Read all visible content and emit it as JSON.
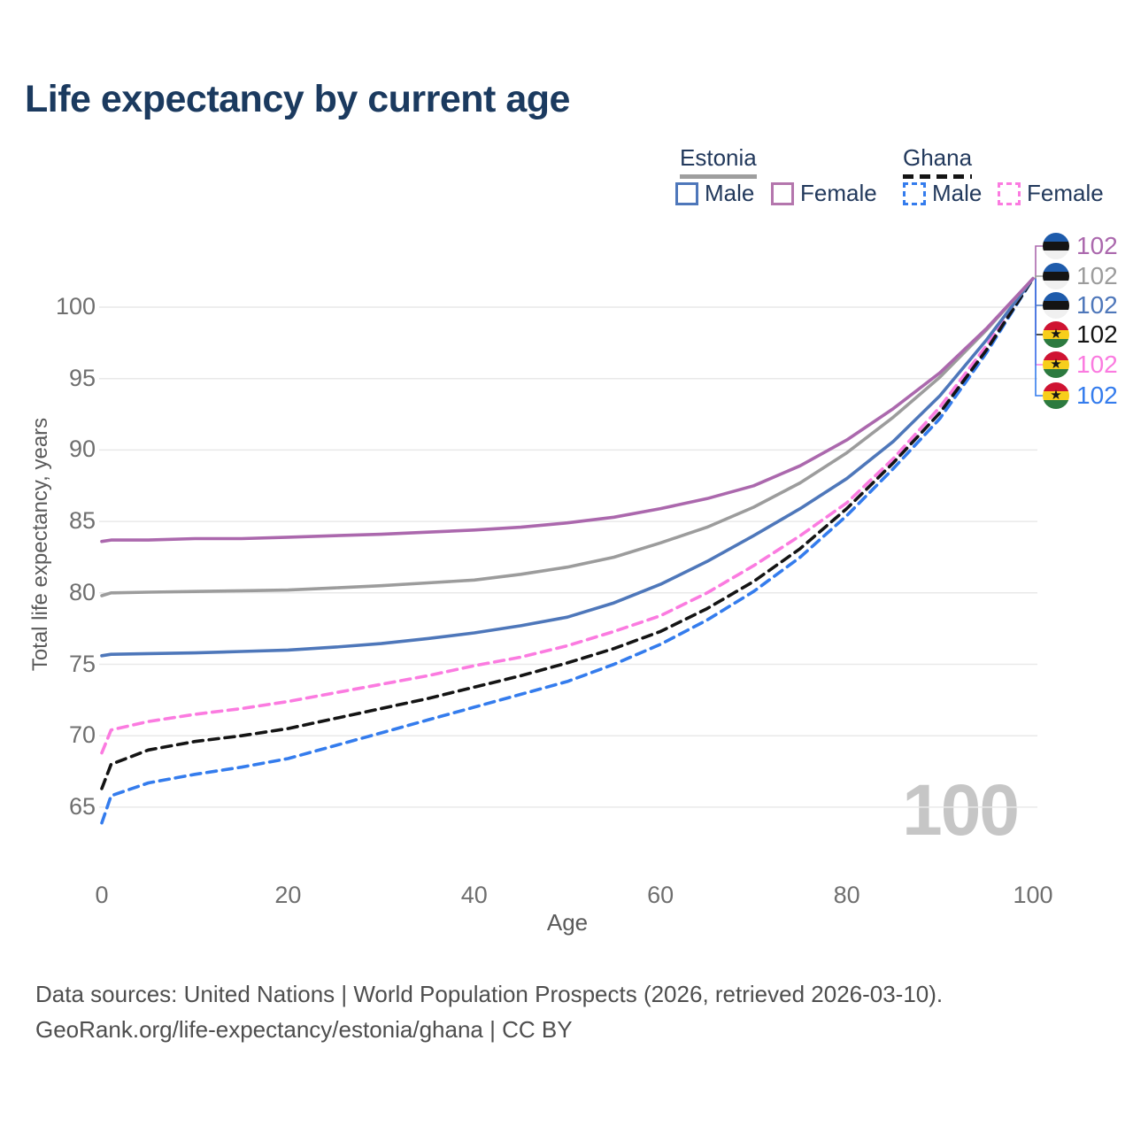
{
  "title": "Life expectancy by current age",
  "legend": {
    "estonia_label": "Estonia",
    "ghana_label": "Ghana",
    "estonia_male_label": "Male",
    "estonia_female_label": "Female",
    "ghana_male_label": "Male",
    "ghana_female_label": "Female"
  },
  "watermark": "100",
  "footer": {
    "line1": "Data sources: United Nations | World Population Prospects (2026, retrieved 2026-03-10).",
    "line2": "GeoRank.org/life-expectancy/estonia/ghana | CC BY"
  },
  "chart_data": {
    "type": "line",
    "title": "Life expectancy by current age",
    "xlabel": "Age",
    "ylabel": "Total life expectancy, years",
    "x_ticks": [
      0,
      20,
      40,
      60,
      80,
      100
    ],
    "y_ticks": [
      65,
      70,
      75,
      80,
      85,
      90,
      95,
      100
    ],
    "xlim": [
      0,
      100
    ],
    "ylim": [
      63,
      103
    ],
    "grid": "horizontal",
    "legend_position": "top-right",
    "x": [
      0,
      1,
      5,
      10,
      15,
      20,
      25,
      30,
      35,
      40,
      45,
      50,
      55,
      60,
      65,
      70,
      75,
      80,
      85,
      90,
      95,
      100
    ],
    "series": [
      {
        "name": "Estonia Female",
        "country": "estonia",
        "color": "#ab68ad",
        "dashed": false,
        "values": [
          83.6,
          83.7,
          83.7,
          83.8,
          83.8,
          83.9,
          84.0,
          84.1,
          84.25,
          84.4,
          84.6,
          84.9,
          85.3,
          85.9,
          86.6,
          87.5,
          88.9,
          90.7,
          92.9,
          95.4,
          98.5,
          102
        ],
        "end_label": "102"
      },
      {
        "name": "Estonia Both sexes",
        "country": "estonia",
        "color": "#9c9c9c",
        "dashed": false,
        "values": [
          79.8,
          80.0,
          80.05,
          80.1,
          80.15,
          80.2,
          80.35,
          80.5,
          80.7,
          80.9,
          81.3,
          81.8,
          82.5,
          83.5,
          84.6,
          86.0,
          87.7,
          89.8,
          92.3,
          95.1,
          98.4,
          102
        ],
        "end_label": "102"
      },
      {
        "name": "Estonia Male",
        "country": "estonia",
        "color": "#4e77ba",
        "dashed": false,
        "values": [
          75.6,
          75.7,
          75.75,
          75.8,
          75.9,
          76.0,
          76.2,
          76.45,
          76.8,
          77.2,
          77.7,
          78.3,
          79.3,
          80.6,
          82.2,
          84.0,
          85.9,
          88.0,
          90.6,
          93.8,
          97.7,
          102
        ],
        "end_label": "102"
      },
      {
        "name": "Ghana Both sexes",
        "country": "ghana",
        "color": "#141414",
        "dashed": true,
        "values": [
          66.3,
          68.0,
          69.0,
          69.6,
          70.0,
          70.5,
          71.2,
          71.9,
          72.6,
          73.4,
          74.2,
          75.1,
          76.1,
          77.3,
          78.9,
          80.8,
          83.1,
          85.9,
          89.1,
          92.6,
          97.0,
          102
        ],
        "end_label": "102"
      },
      {
        "name": "Ghana Female",
        "country": "ghana",
        "color": "#fb7be0",
        "dashed": true,
        "values": [
          68.8,
          70.4,
          71.0,
          71.5,
          71.9,
          72.4,
          73.0,
          73.6,
          74.2,
          74.9,
          75.5,
          76.3,
          77.3,
          78.4,
          80.0,
          81.9,
          84.0,
          86.3,
          89.4,
          93.0,
          97.3,
          102
        ],
        "end_label": "102"
      },
      {
        "name": "Ghana Male",
        "country": "ghana",
        "color": "#347ced",
        "dashed": true,
        "values": [
          63.9,
          65.8,
          66.7,
          67.3,
          67.8,
          68.4,
          69.3,
          70.2,
          71.1,
          72.0,
          72.9,
          73.8,
          75.0,
          76.4,
          78.1,
          80.1,
          82.5,
          85.4,
          88.7,
          92.2,
          96.8,
          102
        ],
        "end_label": "102"
      }
    ],
    "end_label_rows_y": [
      278,
      312,
      345,
      378,
      412,
      447
    ]
  }
}
